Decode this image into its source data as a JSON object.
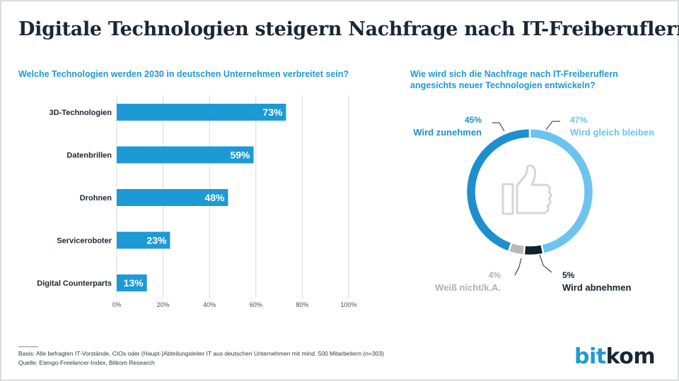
{
  "title": "Digitale Technologien steigern Nachfrage nach IT-Freiberuflern",
  "chart_data": [
    {
      "type": "bar",
      "orientation": "horizontal",
      "title": "Welche Technologien werden 2030 in deutschen Unternehmen verbreitet sein?",
      "categories": [
        "3D-Technologien",
        "Datenbrillen",
        "Drohnen",
        "Serviceroboter",
        "Digital Counterparts"
      ],
      "values": [
        73,
        59,
        48,
        23,
        13
      ],
      "value_labels": [
        "73%",
        "59%",
        "48%",
        "23%",
        "13%"
      ],
      "xlim": [
        0,
        100
      ],
      "x_ticks": [
        "0%",
        "20%",
        "40%",
        "60%",
        "80%",
        "100%"
      ],
      "grid": "vertical",
      "color": "#1d9ad6"
    },
    {
      "type": "pie",
      "style": "donut",
      "title": "Wie wird sich die Nachfrage nach IT-Freiberuflern angesichts neuer Technologien entwickeln?",
      "slices": [
        {
          "label": "Wird gleich bleiben",
          "value": 47,
          "value_label": "47%",
          "color": "#6cc4ee"
        },
        {
          "label": "Wird abnehmen",
          "value": 5,
          "value_label": "5%",
          "color": "#0f2230"
        },
        {
          "label": "Weiß nicht/k.A.",
          "value": 4,
          "value_label": "4%",
          "color": "#b9b9b9"
        },
        {
          "label": "Wird zunehmen",
          "value": 45,
          "value_label": "45%",
          "color": "#1d8fcf"
        }
      ],
      "center_icon": "thumbs-up-icon"
    }
  ],
  "footer": {
    "basis": "Basis: Alle befragten IT-Vorstände, CIOs oder (Haupt-)Abteilungsleiter IT aus deutschen Unternehmen mit mind. 500 Mitarbeitern (n=303)",
    "source": "Quelle: Etengo-Freelancer-Index, Bitkom Research"
  },
  "logo": {
    "part1": "bit",
    "part2": "kom"
  }
}
